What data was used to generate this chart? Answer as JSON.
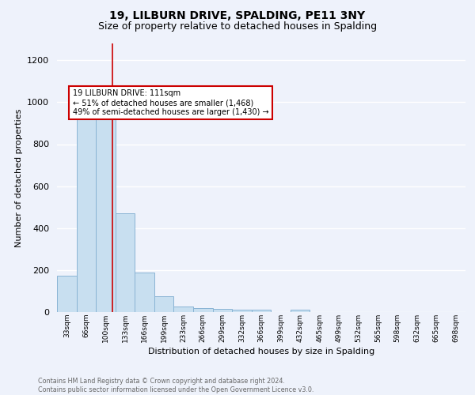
{
  "title1": "19, LILBURN DRIVE, SPALDING, PE11 3NY",
  "title2": "Size of property relative to detached houses in Spalding",
  "xlabel": "Distribution of detached houses by size in Spalding",
  "ylabel": "Number of detached properties",
  "categories": [
    "33sqm",
    "66sqm",
    "100sqm",
    "133sqm",
    "166sqm",
    "199sqm",
    "233sqm",
    "266sqm",
    "299sqm",
    "332sqm",
    "366sqm",
    "399sqm",
    "432sqm",
    "465sqm",
    "499sqm",
    "532sqm",
    "565sqm",
    "598sqm",
    "632sqm",
    "665sqm",
    "698sqm"
  ],
  "values": [
    175,
    970,
    1000,
    470,
    190,
    75,
    25,
    18,
    15,
    12,
    12,
    0,
    12,
    0,
    0,
    0,
    0,
    0,
    0,
    0,
    0
  ],
  "bar_color": "#c8dff0",
  "bar_edge_color": "#8ab4d4",
  "annotation_text": "19 LILBURN DRIVE: 111sqm\n← 51% of detached houses are smaller (1,468)\n49% of semi-detached houses are larger (1,430) →",
  "annotation_box_color": "#ffffff",
  "annotation_box_edge": "#cc0000",
  "ylim": [
    0,
    1280
  ],
  "yticks": [
    0,
    200,
    400,
    600,
    800,
    1000,
    1200
  ],
  "footer": "Contains HM Land Registry data © Crown copyright and database right 2024.\nContains public sector information licensed under the Open Government Licence v3.0.",
  "background_color": "#eef2fb",
  "grid_color": "#ffffff",
  "title1_fontsize": 10,
  "title2_fontsize": 9,
  "xlabel_fontsize": 8,
  "ylabel_fontsize": 8,
  "bar_width": 1.0,
  "red_line_color": "#cc0000",
  "property_sqm": 111,
  "bin_low": 100,
  "bin_high": 133,
  "bin_index": 2
}
